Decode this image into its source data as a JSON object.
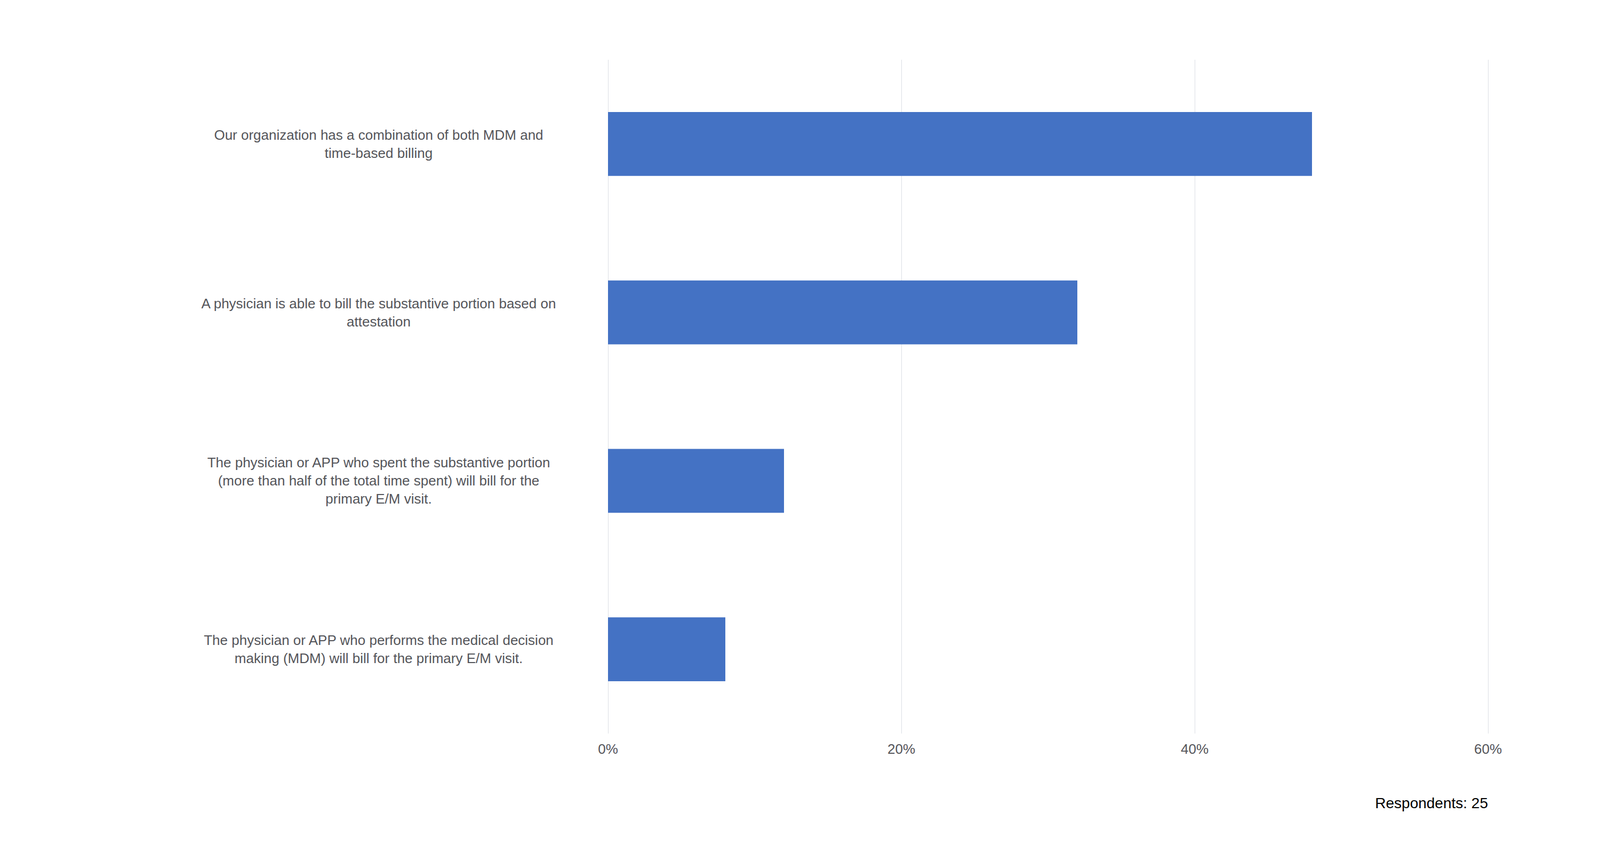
{
  "chart_data": {
    "type": "bar",
    "orientation": "horizontal",
    "categories": [
      "Our organization has a combination of both MDM and\ntime-based billing",
      "A physician is able to bill the substantive portion based on\nattestation",
      "The physician or APP who spent the substantive portion\n(more than half of the total time spent) will bill for the\nprimary E/M visit.",
      "The physician or APP who performs the medical decision\nmaking (MDM) will bill for the primary E/M visit."
    ],
    "values": [
      48,
      32,
      12,
      8
    ],
    "color": "#4472C4",
    "xlim": [
      0,
      60
    ],
    "xticks": [
      {
        "value": 0,
        "label": "0%"
      },
      {
        "value": 20,
        "label": "20%"
      },
      {
        "value": 40,
        "label": "40%"
      },
      {
        "value": 60,
        "label": "60%"
      }
    ],
    "grid": true,
    "annotations": [
      "Respondents: 25"
    ]
  }
}
